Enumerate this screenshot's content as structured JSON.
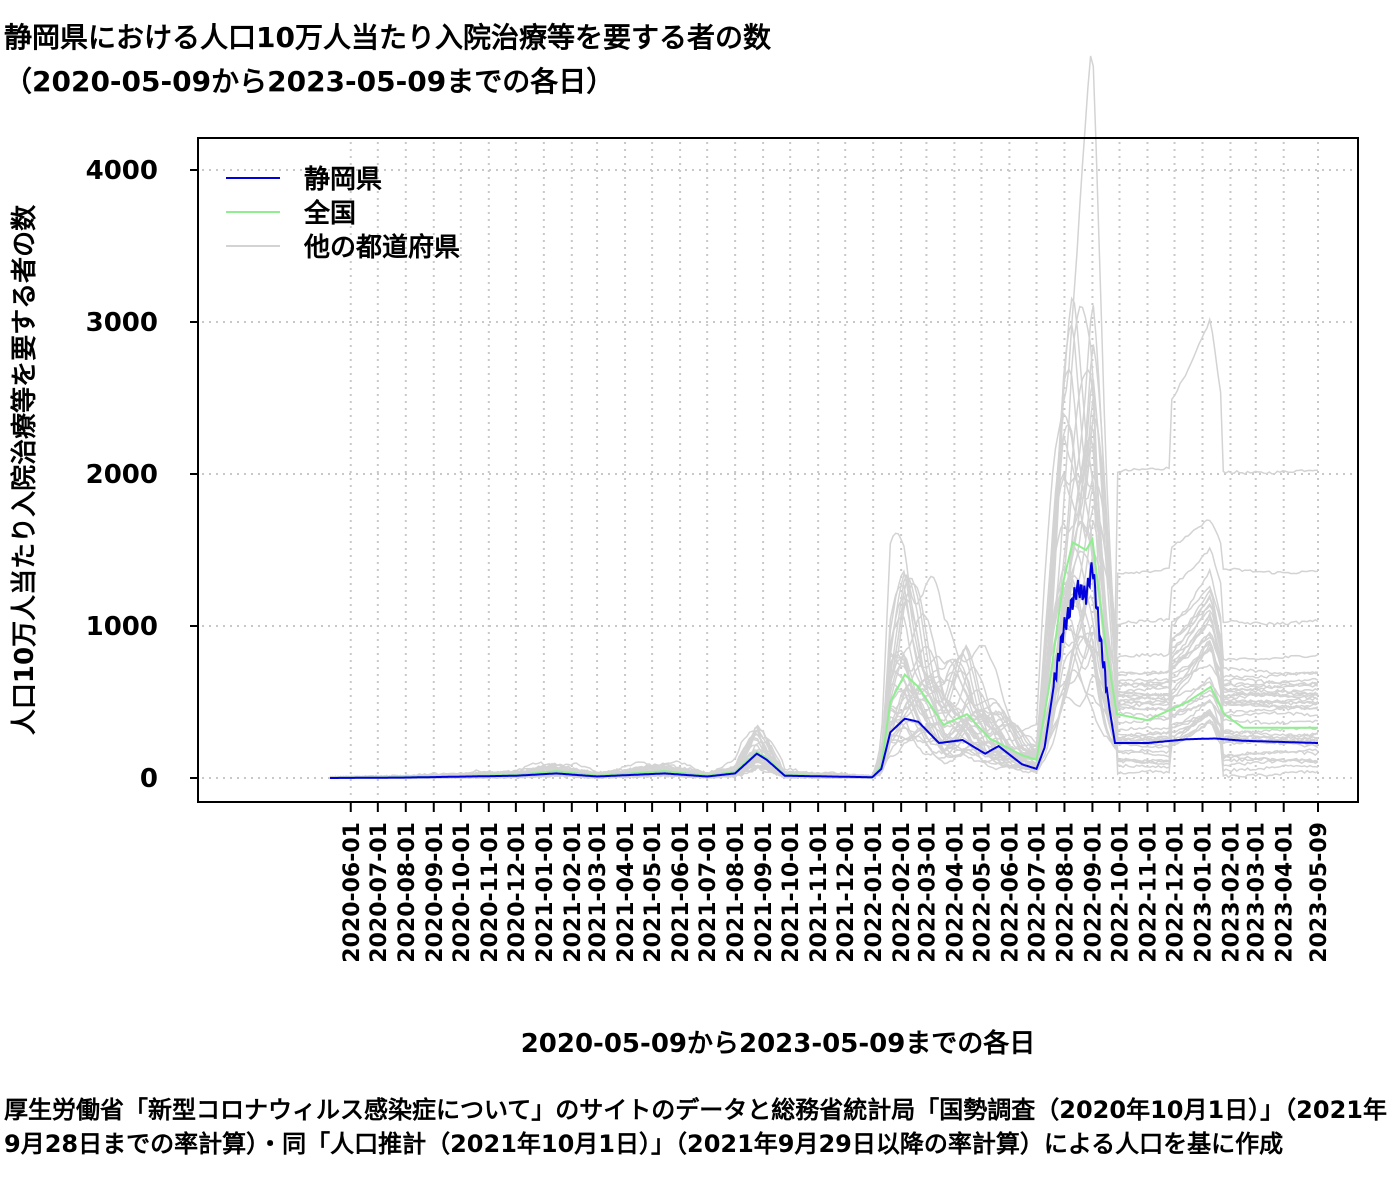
{
  "title_line1": "静岡県における人口10万人当たり入院治療等を要する者の数",
  "title_line2": "（2020-05-09から2023-05-09までの各日）",
  "footnote": "厚生労働省「新型コロナウィルス感染症について」のサイトのデータと総務省統計局「国勢調査（2020年10月1日）」（2021年9月28日までの率計算）・同「人口推計（2021年10月1日）」（2021年9月29日以降の率計算）による人口を基に作成",
  "chart_data": {
    "type": "line",
    "title": "静岡県における人口10万人当たり入院治療等を要する者の数（2020-05-09から2023-05-09までの各日）",
    "xlabel": "2020-05-09から2023-05-09までの各日",
    "ylabel": "人口10万人当たり入院治療等を要する者の数",
    "xlim": [
      "2020-05-09",
      "2023-05-09"
    ],
    "ylim": [
      0,
      4000
    ],
    "yticks": [
      0,
      1000,
      2000,
      3000,
      4000
    ],
    "xticks": [
      "2020-06-01",
      "2020-07-01",
      "2020-08-01",
      "2020-09-01",
      "2020-10-01",
      "2020-11-01",
      "2020-12-01",
      "2021-01-01",
      "2021-02-01",
      "2021-03-01",
      "2021-04-01",
      "2021-05-01",
      "2021-06-01",
      "2021-07-01",
      "2021-08-01",
      "2021-09-01",
      "2021-10-01",
      "2021-11-01",
      "2021-12-01",
      "2022-01-01",
      "2022-02-01",
      "2022-03-01",
      "2022-04-01",
      "2022-05-01",
      "2022-06-01",
      "2022-07-01",
      "2022-08-01",
      "2022-09-01",
      "2022-10-01",
      "2022-11-01",
      "2022-12-01",
      "2023-01-01",
      "2023-02-01",
      "2023-03-01",
      "2023-04-01",
      "2023-05-09"
    ],
    "grid": true,
    "legend_position": "top-left",
    "colors": {
      "shizuoka": "#0000dd",
      "national": "#90ee90",
      "others": "#d3d3d3"
    },
    "series": [
      {
        "name": "静岡県",
        "color": "#0000dd",
        "points": [
          [
            "2020-05-09",
            0
          ],
          [
            "2020-08-01",
            3
          ],
          [
            "2020-12-01",
            15
          ],
          [
            "2021-01-15",
            30
          ],
          [
            "2021-03-01",
            10
          ],
          [
            "2021-05-15",
            30
          ],
          [
            "2021-07-01",
            10
          ],
          [
            "2021-08-01",
            30
          ],
          [
            "2021-08-25",
            160
          ],
          [
            "2021-09-05",
            120
          ],
          [
            "2021-09-25",
            15
          ],
          [
            "2021-12-31",
            5
          ],
          [
            "2022-01-10",
            60
          ],
          [
            "2022-01-20",
            300
          ],
          [
            "2022-02-05",
            390
          ],
          [
            "2022-02-20",
            370
          ],
          [
            "2022-03-15",
            230
          ],
          [
            "2022-04-10",
            250
          ],
          [
            "2022-05-05",
            160
          ],
          [
            "2022-05-20",
            210
          ],
          [
            "2022-06-15",
            90
          ],
          [
            "2022-07-01",
            60
          ],
          [
            "2022-07-10",
            200
          ],
          [
            "2022-07-20",
            600
          ],
          [
            "2022-07-31",
            980
          ],
          [
            "2022-08-15",
            1250
          ],
          [
            "2022-08-25",
            1200
          ],
          [
            "2022-09-01",
            1400
          ],
          [
            "2022-09-10",
            900
          ],
          [
            "2022-09-20",
            450
          ],
          [
            "2022-09-26",
            230
          ],
          [
            "2022-11-01",
            230
          ],
          [
            "2022-12-15",
            255
          ],
          [
            "2023-01-15",
            260
          ],
          [
            "2023-02-15",
            245
          ],
          [
            "2023-05-09",
            230
          ]
        ]
      },
      {
        "name": "全国",
        "color": "#90ee90",
        "points": [
          [
            "2020-05-09",
            0
          ],
          [
            "2020-08-01",
            5
          ],
          [
            "2020-12-01",
            20
          ],
          [
            "2021-01-15",
            45
          ],
          [
            "2021-03-01",
            15
          ],
          [
            "2021-05-15",
            45
          ],
          [
            "2021-07-01",
            15
          ],
          [
            "2021-08-01",
            40
          ],
          [
            "2021-08-25",
            170
          ],
          [
            "2021-09-05",
            130
          ],
          [
            "2021-09-25",
            20
          ],
          [
            "2021-12-31",
            5
          ],
          [
            "2022-01-10",
            80
          ],
          [
            "2022-01-20",
            500
          ],
          [
            "2022-02-05",
            680
          ],
          [
            "2022-02-20",
            600
          ],
          [
            "2022-03-20",
            350
          ],
          [
            "2022-04-15",
            420
          ],
          [
            "2022-05-10",
            260
          ],
          [
            "2022-06-15",
            150
          ],
          [
            "2022-07-01",
            120
          ],
          [
            "2022-07-15",
            600
          ],
          [
            "2022-07-31",
            1300
          ],
          [
            "2022-08-10",
            1550
          ],
          [
            "2022-08-25",
            1500
          ],
          [
            "2022-09-01",
            1570
          ],
          [
            "2022-09-15",
            900
          ],
          [
            "2022-09-28",
            420
          ],
          [
            "2022-11-01",
            380
          ],
          [
            "2022-12-15",
            500
          ],
          [
            "2023-01-10",
            600
          ],
          [
            "2023-01-25",
            420
          ],
          [
            "2023-02-15",
            330
          ],
          [
            "2023-05-09",
            330
          ]
        ]
      },
      {
        "name": "他の都道府県",
        "color": "#d3d3d3",
        "points": []
      }
    ]
  }
}
